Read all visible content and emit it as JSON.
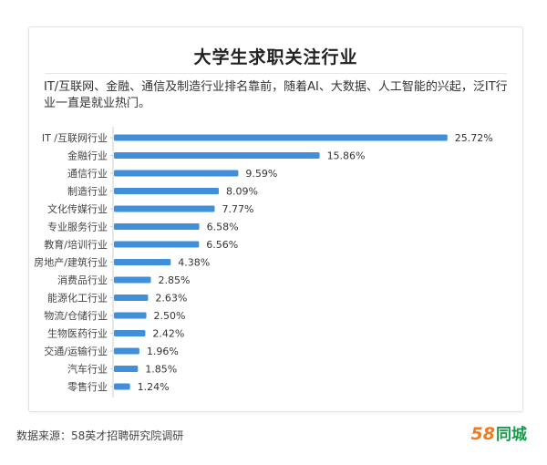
{
  "card": {
    "title": "大学生求职关注行业",
    "subtitle": "IT/互联网、金融、通信及制造行业排名靠前，随着AI、大数据、人工智能的兴起，泛IT行业一直是就业热门。"
  },
  "footer": {
    "source": "数据来源：58英才招聘研究院调研"
  },
  "logo": {
    "number": "58",
    "text": "同城"
  },
  "chart_data": {
    "type": "bar",
    "orientation": "horizontal",
    "categories": [
      "IT /互联网行业",
      "金融行业",
      "通信行业",
      "制造行业",
      "文化传媒行业",
      "专业服务行业",
      "教育/培训行业",
      "房地产/建筑行业",
      "消费品行业",
      "能源化工行业",
      "物流/仓储行业",
      "生物医药行业",
      "交通/运输行业",
      "汽车行业",
      "零售行业"
    ],
    "values": [
      25.72,
      15.86,
      9.59,
      8.09,
      7.77,
      6.58,
      6.56,
      4.38,
      2.85,
      2.63,
      2.5,
      2.42,
      1.96,
      1.85,
      1.24
    ],
    "data_labels": [
      "25.72%",
      "15.86%",
      "9.59%",
      "8.09%",
      "7.77%",
      "6.58%",
      "6.56%",
      "4.38%",
      "2.85%",
      "2.63%",
      "2.50%",
      "2.42%",
      "1.96%",
      "1.85%",
      "1.24%"
    ],
    "xlim": [
      0,
      27
    ],
    "grid": false,
    "bar_color": "#3f8fdb"
  }
}
